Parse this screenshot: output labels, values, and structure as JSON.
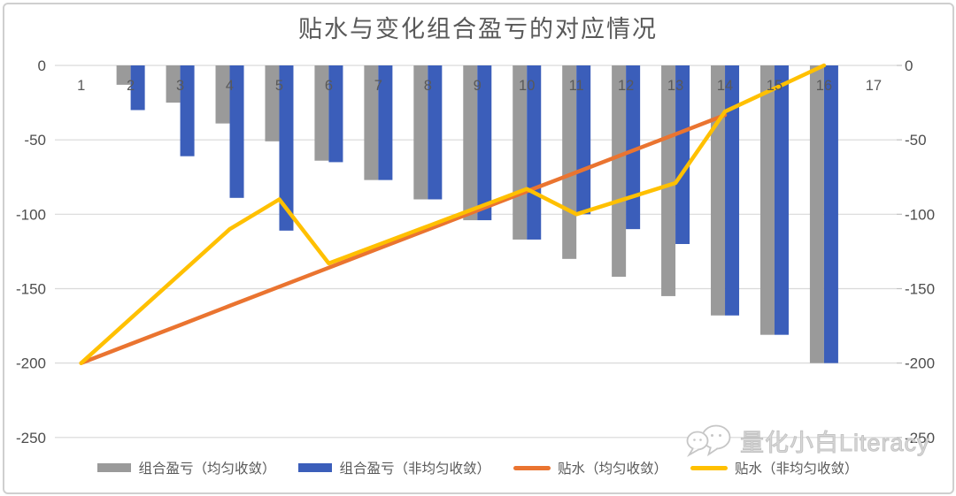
{
  "chart_data": {
    "type": "combo",
    "title": "贴水与变化组合盈亏的对应情况",
    "categories": [
      "1",
      "2",
      "3",
      "4",
      "5",
      "6",
      "7",
      "8",
      "9",
      "10",
      "11",
      "12",
      "13",
      "14",
      "15",
      "16",
      "17"
    ],
    "y_axis": {
      "min": -250,
      "max": 0,
      "tick_step": 50,
      "ticks": [
        0,
        -50,
        -100,
        -150,
        -200,
        -250
      ],
      "labels_both_sides": true
    },
    "gridlines": true,
    "grid_color": "#D9D9D9",
    "axis_text_color": "#4D4D4D",
    "category_text_color": "#595959",
    "legend_position": "bottom",
    "series": [
      {
        "name": "组合盈亏（均匀收敛）",
        "type": "bar",
        "color": "#9A9A9A",
        "values": [
          0,
          -13,
          -25,
          -39,
          -51,
          -64,
          -77,
          -90,
          -104,
          -117,
          -130,
          -142,
          -155,
          -168,
          -181,
          -200,
          null
        ]
      },
      {
        "name": "组合盈亏（非均匀收敛）",
        "type": "bar",
        "color": "#3B5EBA",
        "values": [
          0,
          -30,
          -61,
          -89,
          -111,
          -65,
          -77,
          -90,
          -104,
          -117,
          -100,
          -110,
          -120,
          -168,
          -181,
          -200,
          null
        ]
      },
      {
        "name": "贴水（均匀收敛）",
        "type": "line",
        "color": "#EA7430",
        "values": [
          -200,
          -187.2,
          -174.4,
          -161.5,
          -148.7,
          -135.9,
          -123.1,
          -110.3,
          -97.4,
          -84.6,
          -71.8,
          -59,
          -46.2,
          -33.3,
          null,
          null,
          null
        ]
      },
      {
        "name": "贴水（非均匀收敛）",
        "type": "line",
        "color": "#FFC000",
        "values": [
          -200,
          -170,
          -140,
          -110,
          -90,
          -133,
          -120.5,
          -108,
          -95.5,
          -83,
          -100,
          -89.5,
          -79,
          -31,
          -15.5,
          0,
          null
        ]
      }
    ]
  },
  "watermark": {
    "text": "量化小白Literacy",
    "icon": "chat-bubbles-icon"
  }
}
